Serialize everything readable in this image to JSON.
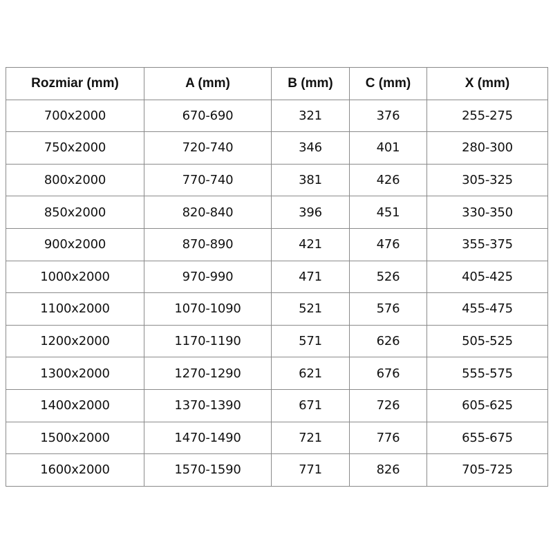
{
  "table": {
    "headers": [
      "Rozmiar (mm)",
      "A (mm)",
      "B (mm)",
      "C (mm)",
      "X (mm)"
    ],
    "rows": [
      [
        "700x2000",
        "670-690",
        "321",
        "376",
        "255-275"
      ],
      [
        "750x2000",
        "720-740",
        "346",
        "401",
        "280-300"
      ],
      [
        "800x2000",
        "770-740",
        "381",
        "426",
        "305-325"
      ],
      [
        "850x2000",
        "820-840",
        "396",
        "451",
        "330-350"
      ],
      [
        "900x2000",
        "870-890",
        "421",
        "476",
        "355-375"
      ],
      [
        "1000x2000",
        "970-990",
        "471",
        "526",
        "405-425"
      ],
      [
        "1100x2000",
        "1070-1090",
        "521",
        "576",
        "455-475"
      ],
      [
        "1200x2000",
        "1170-1190",
        "571",
        "626",
        "505-525"
      ],
      [
        "1300x2000",
        "1270-1290",
        "621",
        "676",
        "555-575"
      ],
      [
        "1400x2000",
        "1370-1390",
        "671",
        "726",
        "605-625"
      ],
      [
        "1500x2000",
        "1470-1490",
        "721",
        "776",
        "655-675"
      ],
      [
        "1600x2000",
        "1570-1590",
        "771",
        "826",
        "705-725"
      ]
    ]
  }
}
